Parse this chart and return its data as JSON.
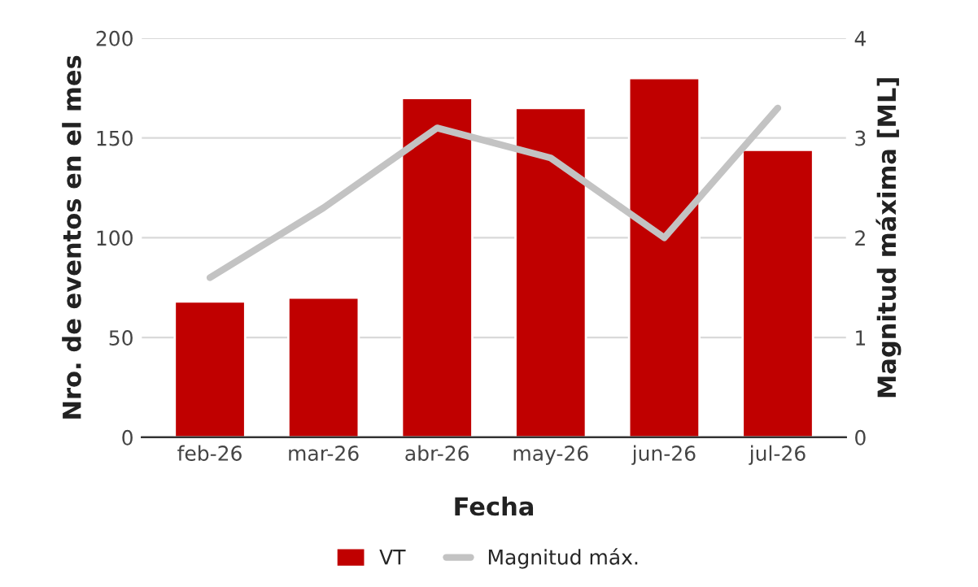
{
  "chart_data": {
    "type": "bar",
    "xlabel": "Fecha",
    "ylabel": "Nro. de eventos en el mes",
    "y2label": "Magnitud máxima [ML]",
    "categories": [
      "feb-26",
      "mar-26",
      "abr-26",
      "may-26",
      "jun-26",
      "jul-26"
    ],
    "series": [
      {
        "name": "VT",
        "color": "#c00000",
        "values": [
          68,
          70,
          170,
          165,
          180,
          144
        ]
      },
      {
        "name": "Magnitud máx.",
        "type": "line",
        "axis": "y2",
        "color": "#c3c3c3",
        "values": [
          1.6,
          2.3,
          3.1,
          2.8,
          2.0,
          3.3
        ]
      }
    ],
    "ylim": [
      0,
      200
    ],
    "yticks": [
      0,
      50,
      100,
      150,
      200
    ],
    "y2lim": [
      0,
      4
    ],
    "y2ticks": [
      0,
      1,
      2,
      3,
      4
    ],
    "grid": "y",
    "legend": "bottom",
    "marker": "none",
    "line_style": "solid"
  }
}
